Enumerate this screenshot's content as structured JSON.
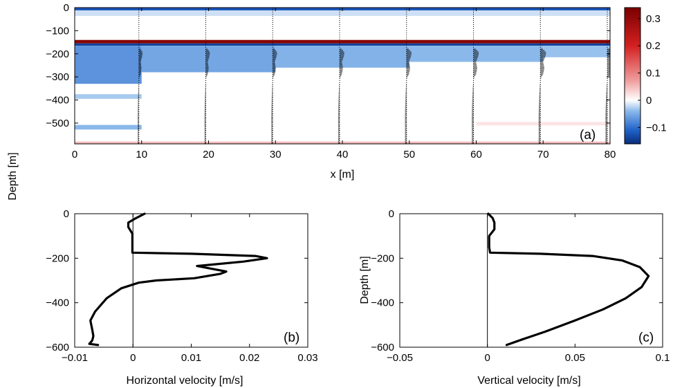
{
  "chart_data": [
    {
      "panel": "(a)",
      "type": "heatmap",
      "xlabel": "x [m]",
      "ylabel": "Depth [m]",
      "xlim": [
        0,
        80
      ],
      "ylim": [
        -590,
        0
      ],
      "x_ticks": [
        "0",
        "10",
        "20",
        "30",
        "40",
        "50",
        "60",
        "70",
        "80"
      ],
      "y_ticks": [
        "0",
        "−100",
        "−200",
        "−300",
        "−400",
        "−500"
      ],
      "colorbar": {
        "range": [
          -0.16,
          0.34
        ],
        "ticks": [
          "0.3",
          "0.2",
          "0.1",
          "0",
          "−0.1"
        ],
        "colormap": [
          "#0b2c7a",
          "#1f62c9",
          "#8ab8ea",
          "#ffffff",
          "#f0a0a0",
          "#d42020",
          "#7a0000"
        ]
      },
      "profile_x_positions": [
        10,
        20,
        30,
        40,
        50,
        60,
        70,
        80
      ],
      "bands": [
        {
          "x": [
            0,
            80
          ],
          "depth": [
            0,
            -12
          ],
          "value": -0.12
        },
        {
          "x": [
            0,
            80
          ],
          "depth": [
            -12,
            -35
          ],
          "value": -0.04
        },
        {
          "x": [
            0,
            80
          ],
          "depth": [
            -140,
            -155
          ],
          "value": 0.32
        },
        {
          "x": [
            0,
            80
          ],
          "depth": [
            -155,
            -165
          ],
          "value": -0.14
        },
        {
          "x": [
            0,
            10
          ],
          "depth": [
            -165,
            -330
          ],
          "value": -0.07
        },
        {
          "x": [
            10,
            30
          ],
          "depth": [
            -165,
            -280
          ],
          "value": -0.055
        },
        {
          "x": [
            30,
            50
          ],
          "depth": [
            -165,
            -260
          ],
          "value": -0.045
        },
        {
          "x": [
            50,
            70
          ],
          "depth": [
            -165,
            -235
          ],
          "value": -0.04
        },
        {
          "x": [
            70,
            80
          ],
          "depth": [
            -165,
            -215
          ],
          "value": -0.035
        },
        {
          "x": [
            0,
            10
          ],
          "depth": [
            -375,
            -395
          ],
          "value": -0.03
        },
        {
          "x": [
            0,
            10
          ],
          "depth": [
            -508,
            -528
          ],
          "value": -0.04
        },
        {
          "x": [
            60,
            80
          ],
          "depth": [
            -495,
            -510
          ],
          "value": 0.02
        },
        {
          "x": [
            0,
            80
          ],
          "depth": [
            -580,
            -590
          ],
          "value": 0.05
        }
      ]
    },
    {
      "panel": "(b)",
      "type": "line",
      "xlabel": "Horizontal velocity [m/s]",
      "ylabel": "",
      "xlim": [
        -0.01,
        0.03
      ],
      "ylim": [
        -600,
        0
      ],
      "x_ticks": [
        "−0.01",
        "0",
        "0.01",
        "0.02",
        "0.03"
      ],
      "y_ticks": [
        "0",
        "−200",
        "−400",
        "−600"
      ],
      "series": [
        {
          "x": [
            0.002,
            0.0005,
            -0.0008,
            -0.0008,
            -0.0001,
            -0.0001,
            -0.0001,
            -0.0001,
            0.01,
            0.021,
            0.023,
            0.019,
            0.011,
            0.013,
            0.016,
            0.015,
            0.0105,
            0.004,
            0.001,
            -0.002,
            -0.0045,
            -0.0065,
            -0.0073,
            -0.007,
            -0.0068,
            -0.007,
            -0.0075,
            -0.006
          ],
          "y": [
            0,
            -20,
            -40,
            -60,
            -90,
            -120,
            -150,
            -175,
            -180,
            -190,
            -200,
            -215,
            -235,
            -245,
            -260,
            -270,
            -290,
            -300,
            -310,
            -335,
            -380,
            -440,
            -480,
            -520,
            -550,
            -570,
            -585,
            -590
          ]
        }
      ]
    },
    {
      "panel": "(c)",
      "type": "line",
      "xlabel": "Vertical velocity [m/s]",
      "ylabel": "Depth [m]",
      "xlim": [
        -0.05,
        0.1
      ],
      "ylim": [
        -600,
        0
      ],
      "x_ticks": [
        "−0.05",
        "0",
        "0.05",
        "0.1"
      ],
      "y_ticks": [
        "0",
        "−200",
        "−400",
        "−600"
      ],
      "series": [
        {
          "x": [
            0.0005,
            0.003,
            0.004,
            0.004,
            0.001,
            0.001,
            0.0015,
            0.03,
            0.06,
            0.077,
            0.087,
            0.092,
            0.088,
            0.079,
            0.066,
            0.05,
            0.033,
            0.02,
            0.011
          ],
          "y": [
            0,
            -20,
            -40,
            -70,
            -100,
            -150,
            -175,
            -180,
            -190,
            -210,
            -240,
            -280,
            -330,
            -380,
            -430,
            -480,
            -530,
            -565,
            -590
          ]
        }
      ]
    }
  ],
  "labels": {
    "a_panel": "(a)",
    "b_panel": "(b)",
    "c_panel": "(c)",
    "a_xlabel": "x [m]",
    "shared_ylabel": "Depth [m]",
    "b_xlabel": "Horizontal velocity [m/s]",
    "c_xlabel": "Vertical velocity [m/s]",
    "c_ylabel": "Depth [m]"
  }
}
